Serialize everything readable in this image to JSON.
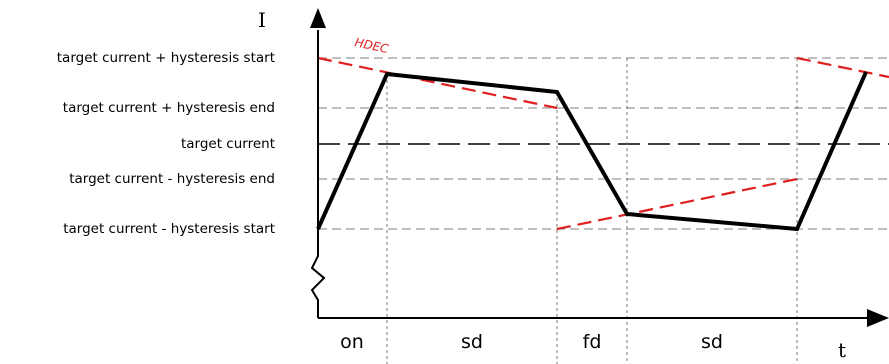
{
  "diagram": {
    "axes": {
      "y_label": "I",
      "x_label": "t"
    },
    "levels": [
      {
        "key": "hstart_hi",
        "label": "target current + hysteresis start"
      },
      {
        "key": "hend_hi",
        "label": "target current + hysteresis end"
      },
      {
        "key": "target",
        "label": "target current"
      },
      {
        "key": "hend_lo",
        "label": "target current - hysteresis end"
      },
      {
        "key": "hstart_lo",
        "label": "target current - hysteresis start"
      }
    ],
    "phases": [
      "on",
      "sd",
      "fd",
      "sd"
    ],
    "annotation": "HDEC",
    "colors": {
      "current": "#000000",
      "hdec": "#e02020",
      "grid": "#999999",
      "target": "#000000"
    }
  }
}
